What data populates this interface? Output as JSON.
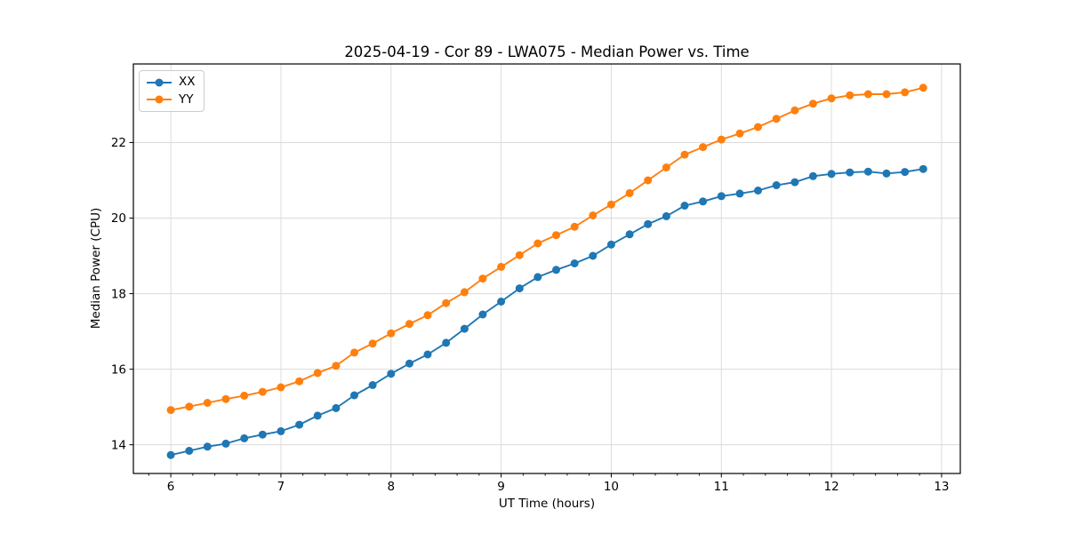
{
  "chart_data": {
    "type": "line",
    "title": "2025-04-19 - Cor 89 - LWA075 - Median Power vs. Time",
    "xlabel": "UT Time (hours)",
    "ylabel": "Median Power (CPU)",
    "x": [
      6.0,
      6.167,
      6.333,
      6.5,
      6.667,
      6.833,
      7.0,
      7.167,
      7.333,
      7.5,
      7.667,
      7.833,
      8.0,
      8.167,
      8.333,
      8.5,
      8.667,
      8.833,
      9.0,
      9.167,
      9.333,
      9.5,
      9.667,
      9.833,
      10.0,
      10.167,
      10.333,
      10.5,
      10.667,
      10.833,
      11.0,
      11.167,
      11.333,
      11.5,
      11.667,
      11.833,
      12.0,
      12.167,
      12.333,
      12.5,
      12.667,
      12.833
    ],
    "series": [
      {
        "name": "XX",
        "color": "#1f77b4",
        "values": [
          13.73,
          13.84,
          13.95,
          14.03,
          14.17,
          14.27,
          14.36,
          14.53,
          14.77,
          14.97,
          15.31,
          15.58,
          15.88,
          16.15,
          16.39,
          16.7,
          17.07,
          17.45,
          17.79,
          18.14,
          18.44,
          18.63,
          18.8,
          19.0,
          19.3,
          19.57,
          19.84,
          20.05,
          20.33,
          20.44,
          20.58,
          20.65,
          20.73,
          20.87,
          20.95,
          21.11,
          21.17,
          21.21,
          21.23,
          21.18,
          21.22,
          21.3
        ]
      },
      {
        "name": "YY",
        "color": "#ff7f0e",
        "values": [
          14.92,
          15.01,
          15.11,
          15.21,
          15.3,
          15.4,
          15.52,
          15.68,
          15.9,
          16.09,
          16.44,
          16.68,
          16.95,
          17.2,
          17.43,
          17.75,
          18.04,
          18.4,
          18.71,
          19.02,
          19.33,
          19.55,
          19.77,
          20.07,
          20.36,
          20.66,
          21.0,
          21.34,
          21.68,
          21.88,
          22.08,
          22.24,
          22.41,
          22.63,
          22.85,
          23.03,
          23.17,
          23.25,
          23.28,
          23.28,
          23.33,
          23.45
        ]
      }
    ],
    "xlim": [
      5.66,
      13.17
    ],
    "ylim": [
      13.24,
      24.08
    ],
    "x_ticks": [
      6,
      7,
      8,
      9,
      10,
      11,
      12,
      13
    ],
    "x_tick_labels": [
      "6",
      "7",
      "8",
      "9",
      "10",
      "11",
      "12",
      "13"
    ],
    "y_ticks": [
      14,
      16,
      18,
      20,
      22
    ],
    "y_tick_labels": [
      "14",
      "16",
      "18",
      "20",
      "22"
    ],
    "x_minor_tick_step": 0.2,
    "grid": true,
    "legend_position": "upper left",
    "colors": {
      "grid": "#dcdcdc",
      "spine": "#000000",
      "text": "#000000",
      "background": "#ffffff",
      "legend_border": "#cccccc"
    }
  }
}
